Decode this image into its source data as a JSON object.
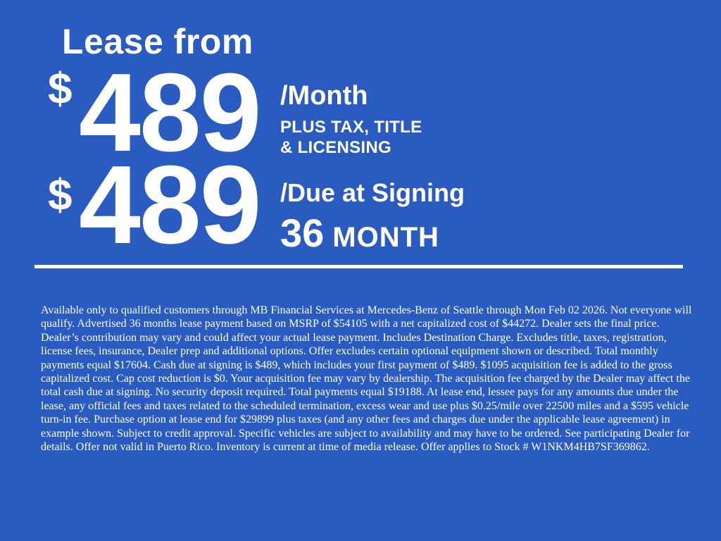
{
  "banner": {
    "background_color": "#2A5BC1",
    "text_color": "#FFFFFF",
    "title": "Lease from"
  },
  "monthly_offer": {
    "currency_symbol": "$",
    "amount": "489",
    "term_label": "/Month",
    "qualifier_line1": "PLUS TAX, TITLE",
    "qualifier_line2": "& LICENSING"
  },
  "signing_offer": {
    "currency_symbol": "$",
    "amount": "489",
    "term_label": "/Due at Signing",
    "duration_value": "36",
    "duration_unit": "MONTH"
  },
  "disclaimer": "Available only to qualified customers through MB Financial Services at Mercedes-Benz of Seattle through Mon Feb 02 2026. Not everyone will qualify. Advertised 36 months lease payment based on MSRP of $54105 with a net capitalized cost of $44272. Dealer sets the final price. Dealer’s contribution may vary and could affect your actual lease payment. Includes Destination Charge. Excludes title, taxes, registration, license fees, insurance, Dealer prep and additional options. Offer excludes certain optional equipment shown or described. Total monthly payments equal $17604. Cash due at signing is $489, which includes your first payment of $489. $1095 acquisition fee is added to the gross capitalized cost. Cap cost reduction is $0. Your acquisition fee may vary by dealership. The acquisition fee charged by the Dealer may affect the total cash due at signing. No security deposit required. Total payments equal $19188. At lease end, lessee pays for any amounts due under the lease, any official fees and taxes related to the scheduled termination, excess wear and use plus $0.25/mile over 22500 miles and a $595 vehicle turn-in fee. Purchase option at lease end for $29899 plus taxes (and any other fees and charges due under the applicable lease agreement) in example shown. Subject to credit approval. Specific vehicles are subject to availability and may have to be ordered. See participating Dealer for details. Offer not valid in Puerto Rico. Inventory is current at time of media release. Offer applies to Stock # W1NKM4HB7SF369862."
}
